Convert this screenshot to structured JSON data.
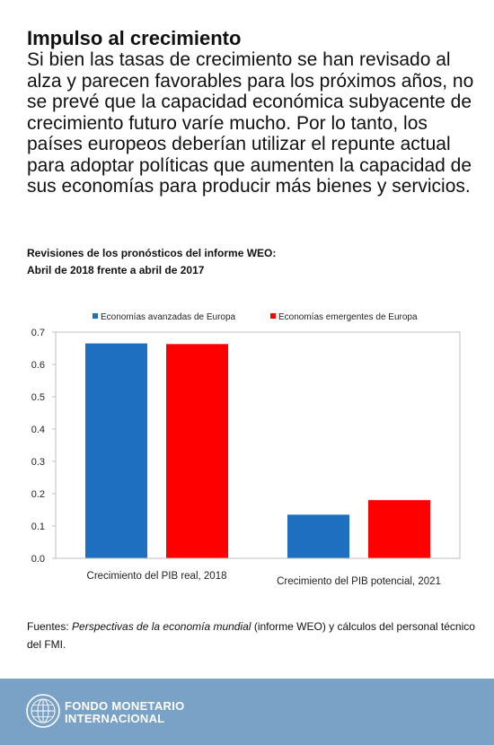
{
  "header": {
    "title": "Impulso al crecimiento",
    "intro": "Si bien las tasas de crecimiento se han revisado al alza y parecen favorables para los próximos años, no se prevé que la capacidad económica subyacente de crecimiento futuro varíe mucho. Por lo tanto, los países europeos deberían utilizar el repunte actual para adoptar políticas que aumenten la capacidad de sus economías para producir más bienes y servicios."
  },
  "chart_data": {
    "type": "bar",
    "title": "Revisiones de los pronósticos del informe WEO:",
    "subtitle": "Abril de 2018 frente a abril de 2017",
    "categories": [
      "Crecimiento del PIB real, 2018",
      "Crecimiento del PIB potencial, 2021"
    ],
    "series": [
      {
        "name": "Economías avanzadas de Europa",
        "color": "#1f6fc1",
        "values": [
          0.665,
          0.135
        ]
      },
      {
        "name": "Economías emergentes de Europa",
        "color": "#ff0000",
        "values": [
          0.663,
          0.18
        ]
      }
    ],
    "ylim": [
      0,
      0.7
    ],
    "yticks": [
      "0.0",
      "0.1",
      "0.2",
      "0.3",
      "0.4",
      "0.5",
      "0.6",
      "0.7"
    ],
    "legend_position": "top",
    "grid": false
  },
  "source": {
    "prefix": "Fuentes: ",
    "publication": "Perspectivas de la economía mundial",
    "suffix": " (informe WEO) y cálculos del personal técnico del FMI."
  },
  "footer": {
    "org_line1": "FONDO MONETARIO",
    "org_line2": "INTERNACIONAL",
    "logo_icon": "imf-seal-icon",
    "background": "#7aa2c6"
  }
}
